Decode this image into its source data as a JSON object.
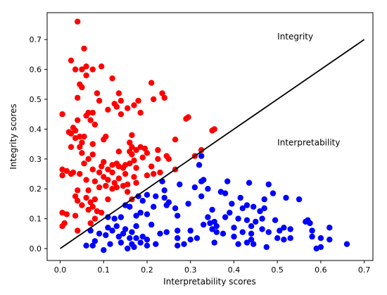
{
  "chart_data": {
    "type": "scatter",
    "title": "",
    "xlabel": "Interpretability scores",
    "ylabel": "Integrity scores",
    "xlim": [
      -0.03,
      0.72
    ],
    "ylim": [
      -0.04,
      0.79
    ],
    "xticks": [
      0.0,
      0.1,
      0.2,
      0.3,
      0.4,
      0.5,
      0.6,
      0.7
    ],
    "yticks": [
      0.0,
      0.1,
      0.2,
      0.3,
      0.4,
      0.5,
      0.6,
      0.7
    ],
    "grid": false,
    "legend": "none",
    "annotations": [
      {
        "text": "Integrity",
        "x": 0.5,
        "y": 0.7
      },
      {
        "text": "Interpretability",
        "x": 0.5,
        "y": 0.345
      }
    ],
    "reference_line": {
      "x": [
        0.0,
        0.7
      ],
      "y": [
        0.0,
        0.7
      ],
      "color": "#000000"
    },
    "series": [
      {
        "color": "#ff0000",
        "points": [
          [
            0.04,
            0.76
          ],
          [
            0.055,
            0.67
          ],
          [
            0.025,
            0.63
          ],
          [
            0.06,
            0.61
          ],
          [
            0.035,
            0.6
          ],
          [
            0.075,
            0.6
          ],
          [
            0.095,
            0.61
          ],
          [
            0.05,
            0.6
          ],
          [
            0.045,
            0.55
          ],
          [
            0.12,
            0.57
          ],
          [
            0.06,
            0.58
          ],
          [
            0.21,
            0.555
          ],
          [
            0.05,
            0.54
          ],
          [
            0.135,
            0.52
          ],
          [
            0.235,
            0.52
          ],
          [
            0.24,
            0.505
          ],
          [
            0.14,
            0.495
          ],
          [
            0.085,
            0.52
          ],
          [
            0.04,
            0.505
          ],
          [
            0.215,
            0.5
          ],
          [
            0.09,
            0.495
          ],
          [
            0.18,
            0.495
          ],
          [
            0.125,
            0.485
          ],
          [
            0.17,
            0.48
          ],
          [
            0.13,
            0.475
          ],
          [
            0.155,
            0.47
          ],
          [
            0.11,
            0.465
          ],
          [
            0.065,
            0.455
          ],
          [
            0.075,
            0.455
          ],
          [
            0.06,
            0.445
          ],
          [
            0.005,
            0.45
          ],
          [
            0.14,
            0.45
          ],
          [
            0.185,
            0.455
          ],
          [
            0.295,
            0.44
          ],
          [
            0.29,
            0.435
          ],
          [
            0.07,
            0.43
          ],
          [
            0.04,
            0.43
          ],
          [
            0.08,
            0.415
          ],
          [
            0.03,
            0.405
          ],
          [
            0.035,
            0.395
          ],
          [
            0.355,
            0.4
          ],
          [
            0.35,
            0.395
          ],
          [
            0.02,
            0.39
          ],
          [
            0.025,
            0.385
          ],
          [
            0.165,
            0.38
          ],
          [
            0.055,
            0.375
          ],
          [
            0.045,
            0.375
          ],
          [
            0.035,
            0.37
          ],
          [
            0.105,
            0.375
          ],
          [
            0.1,
            0.365
          ],
          [
            0.265,
            0.365
          ],
          [
            0.05,
            0.355
          ],
          [
            0.075,
            0.35
          ],
          [
            0.16,
            0.355
          ],
          [
            0.045,
            0.34
          ],
          [
            0.025,
            0.34
          ],
          [
            0.165,
            0.34
          ],
          [
            0.185,
            0.34
          ],
          [
            0.195,
            0.335
          ],
          [
            0.175,
            0.33
          ],
          [
            0.225,
            0.33
          ],
          [
            0.135,
            0.325
          ],
          [
            0.16,
            0.325
          ],
          [
            0.05,
            0.32
          ],
          [
            0.325,
            0.33
          ],
          [
            0.165,
            0.315
          ],
          [
            0.2,
            0.32
          ],
          [
            0.075,
            0.315
          ],
          [
            0.19,
            0.305
          ],
          [
            0.245,
            0.31
          ],
          [
            0.225,
            0.3
          ],
          [
            0.065,
            0.3
          ],
          [
            0.17,
            0.295
          ],
          [
            0.31,
            0.31
          ],
          [
            0.25,
            0.3
          ],
          [
            0.1,
            0.29
          ],
          [
            0.13,
            0.285
          ],
          [
            0.16,
            0.285
          ],
          [
            0.055,
            0.285
          ],
          [
            0.12,
            0.28
          ],
          [
            0.135,
            0.275
          ],
          [
            0.15,
            0.28
          ],
          [
            0.095,
            0.275
          ],
          [
            0.21,
            0.275
          ],
          [
            0.145,
            0.27
          ],
          [
            0.175,
            0.27
          ],
          [
            0.265,
            0.265
          ],
          [
            0.005,
            0.265
          ],
          [
            0.075,
            0.265
          ],
          [
            0.11,
            0.265
          ],
          [
            0.015,
            0.26
          ],
          [
            0.09,
            0.255
          ],
          [
            0.12,
            0.255
          ],
          [
            0.045,
            0.25
          ],
          [
            0.03,
            0.255
          ],
          [
            0.025,
            0.25
          ],
          [
            0.005,
            0.245
          ],
          [
            0.15,
            0.25
          ],
          [
            0.215,
            0.25
          ],
          [
            0.23,
            0.255
          ],
          [
            0.2,
            0.245
          ],
          [
            0.1,
            0.24
          ],
          [
            0.17,
            0.24
          ],
          [
            0.11,
            0.23
          ],
          [
            0.135,
            0.235
          ],
          [
            0.06,
            0.23
          ],
          [
            0.08,
            0.225
          ],
          [
            0.125,
            0.22
          ],
          [
            0.155,
            0.215
          ],
          [
            0.175,
            0.22
          ],
          [
            0.105,
            0.21
          ],
          [
            0.09,
            0.205
          ],
          [
            0.13,
            0.205
          ],
          [
            0.145,
            0.21
          ],
          [
            0.065,
            0.195
          ],
          [
            0.04,
            0.195
          ],
          [
            0.12,
            0.2
          ],
          [
            0.155,
            0.19
          ],
          [
            0.035,
            0.175
          ],
          [
            0.06,
            0.17
          ],
          [
            0.08,
            0.165
          ],
          [
            0.11,
            0.165
          ],
          [
            0.165,
            0.165
          ],
          [
            0.04,
            0.16
          ],
          [
            0.07,
            0.155
          ],
          [
            0.05,
            0.145
          ],
          [
            0.075,
            0.14
          ],
          [
            0.065,
            0.13
          ],
          [
            0.085,
            0.125
          ],
          [
            0.095,
            0.12
          ],
          [
            0.005,
            0.12
          ],
          [
            0.015,
            0.115
          ],
          [
            0.035,
            0.11
          ],
          [
            0.08,
            0.1
          ],
          [
            0.07,
            0.085
          ],
          [
            0.01,
            0.085
          ],
          [
            0.005,
            0.075
          ],
          [
            0.04,
            0.06
          ]
        ]
      },
      {
        "color": "#0000ff",
        "points": [
          [
            0.325,
            0.31
          ],
          [
            0.32,
            0.28
          ],
          [
            0.33,
            0.23
          ],
          [
            0.325,
            0.225
          ],
          [
            0.235,
            0.225
          ],
          [
            0.275,
            0.215
          ],
          [
            0.34,
            0.2
          ],
          [
            0.435,
            0.22
          ],
          [
            0.385,
            0.225
          ],
          [
            0.48,
            0.215
          ],
          [
            0.31,
            0.205
          ],
          [
            0.24,
            0.195
          ],
          [
            0.2,
            0.18
          ],
          [
            0.22,
            0.175
          ],
          [
            0.37,
            0.19
          ],
          [
            0.49,
            0.185
          ],
          [
            0.18,
            0.175
          ],
          [
            0.24,
            0.17
          ],
          [
            0.325,
            0.175
          ],
          [
            0.38,
            0.185
          ],
          [
            0.415,
            0.17
          ],
          [
            0.47,
            0.165
          ],
          [
            0.52,
            0.17
          ],
          [
            0.55,
            0.165
          ],
          [
            0.19,
            0.16
          ],
          [
            0.295,
            0.15
          ],
          [
            0.25,
            0.155
          ],
          [
            0.245,
            0.145
          ],
          [
            0.15,
            0.145
          ],
          [
            0.16,
            0.14
          ],
          [
            0.215,
            0.14
          ],
          [
            0.265,
            0.135
          ],
          [
            0.395,
            0.15
          ],
          [
            0.43,
            0.145
          ],
          [
            0.445,
            0.14
          ],
          [
            0.42,
            0.135
          ],
          [
            0.47,
            0.135
          ],
          [
            0.46,
            0.125
          ],
          [
            0.35,
            0.13
          ],
          [
            0.39,
            0.12
          ],
          [
            0.27,
            0.11
          ],
          [
            0.2,
            0.115
          ],
          [
            0.185,
            0.12
          ],
          [
            0.175,
            0.11
          ],
          [
            0.14,
            0.105
          ],
          [
            0.125,
            0.1
          ],
          [
            0.11,
            0.105
          ],
          [
            0.34,
            0.105
          ],
          [
            0.38,
            0.105
          ],
          [
            0.41,
            0.1
          ],
          [
            0.43,
            0.095
          ],
          [
            0.45,
            0.09
          ],
          [
            0.465,
            0.1
          ],
          [
            0.495,
            0.095
          ],
          [
            0.565,
            0.09
          ],
          [
            0.57,
            0.095
          ],
          [
            0.575,
            0.085
          ],
          [
            0.355,
            0.09
          ],
          [
            0.345,
            0.085
          ],
          [
            0.33,
            0.08
          ],
          [
            0.36,
            0.075
          ],
          [
            0.4,
            0.07
          ],
          [
            0.44,
            0.075
          ],
          [
            0.21,
            0.08
          ],
          [
            0.175,
            0.075
          ],
          [
            0.13,
            0.075
          ],
          [
            0.11,
            0.07
          ],
          [
            0.515,
            0.07
          ],
          [
            0.53,
            0.065
          ],
          [
            0.62,
            0.07
          ],
          [
            0.58,
            0.06
          ],
          [
            0.35,
            0.065
          ],
          [
            0.36,
            0.055
          ],
          [
            0.375,
            0.05
          ],
          [
            0.42,
            0.055
          ],
          [
            0.44,
            0.05
          ],
          [
            0.465,
            0.065
          ],
          [
            0.48,
            0.055
          ],
          [
            0.505,
            0.06
          ],
          [
            0.3,
            0.06
          ],
          [
            0.27,
            0.06
          ],
          [
            0.245,
            0.055
          ],
          [
            0.23,
            0.05
          ],
          [
            0.15,
            0.065
          ],
          [
            0.165,
            0.055
          ],
          [
            0.145,
            0.05
          ],
          [
            0.12,
            0.06
          ],
          [
            0.07,
            0.06
          ],
          [
            0.09,
            0.05
          ],
          [
            0.105,
            0.045
          ],
          [
            0.135,
            0.04
          ],
          [
            0.16,
            0.035
          ],
          [
            0.175,
            0.035
          ],
          [
            0.19,
            0.04
          ],
          [
            0.2,
            0.03
          ],
          [
            0.27,
            0.035
          ],
          [
            0.3,
            0.03
          ],
          [
            0.315,
            0.035
          ],
          [
            0.4,
            0.04
          ],
          [
            0.44,
            0.03
          ],
          [
            0.5,
            0.035
          ],
          [
            0.515,
            0.03
          ],
          [
            0.53,
            0.035
          ],
          [
            0.6,
            0.035
          ],
          [
            0.62,
            0.03
          ],
          [
            0.58,
            0.04
          ],
          [
            0.43,
            0.02
          ],
          [
            0.41,
            0.015
          ],
          [
            0.445,
            0.015
          ],
          [
            0.355,
            0.02
          ],
          [
            0.285,
            0.015
          ],
          [
            0.27,
            0.01
          ],
          [
            0.2,
            0.01
          ],
          [
            0.185,
            0.02
          ],
          [
            0.165,
            0.015
          ],
          [
            0.14,
            0.02
          ],
          [
            0.115,
            0.015
          ],
          [
            0.08,
            0.025
          ],
          [
            0.075,
            0.01
          ],
          [
            0.06,
            0.01
          ],
          [
            0.17,
            0.005
          ],
          [
            0.155,
            0.0
          ],
          [
            0.1,
            -0.005
          ],
          [
            0.59,
            0.0
          ],
          [
            0.6,
            0.005
          ],
          [
            0.66,
            0.015
          ],
          [
            0.475,
            0.005
          ],
          [
            0.22,
            0.015
          ]
        ]
      }
    ]
  }
}
